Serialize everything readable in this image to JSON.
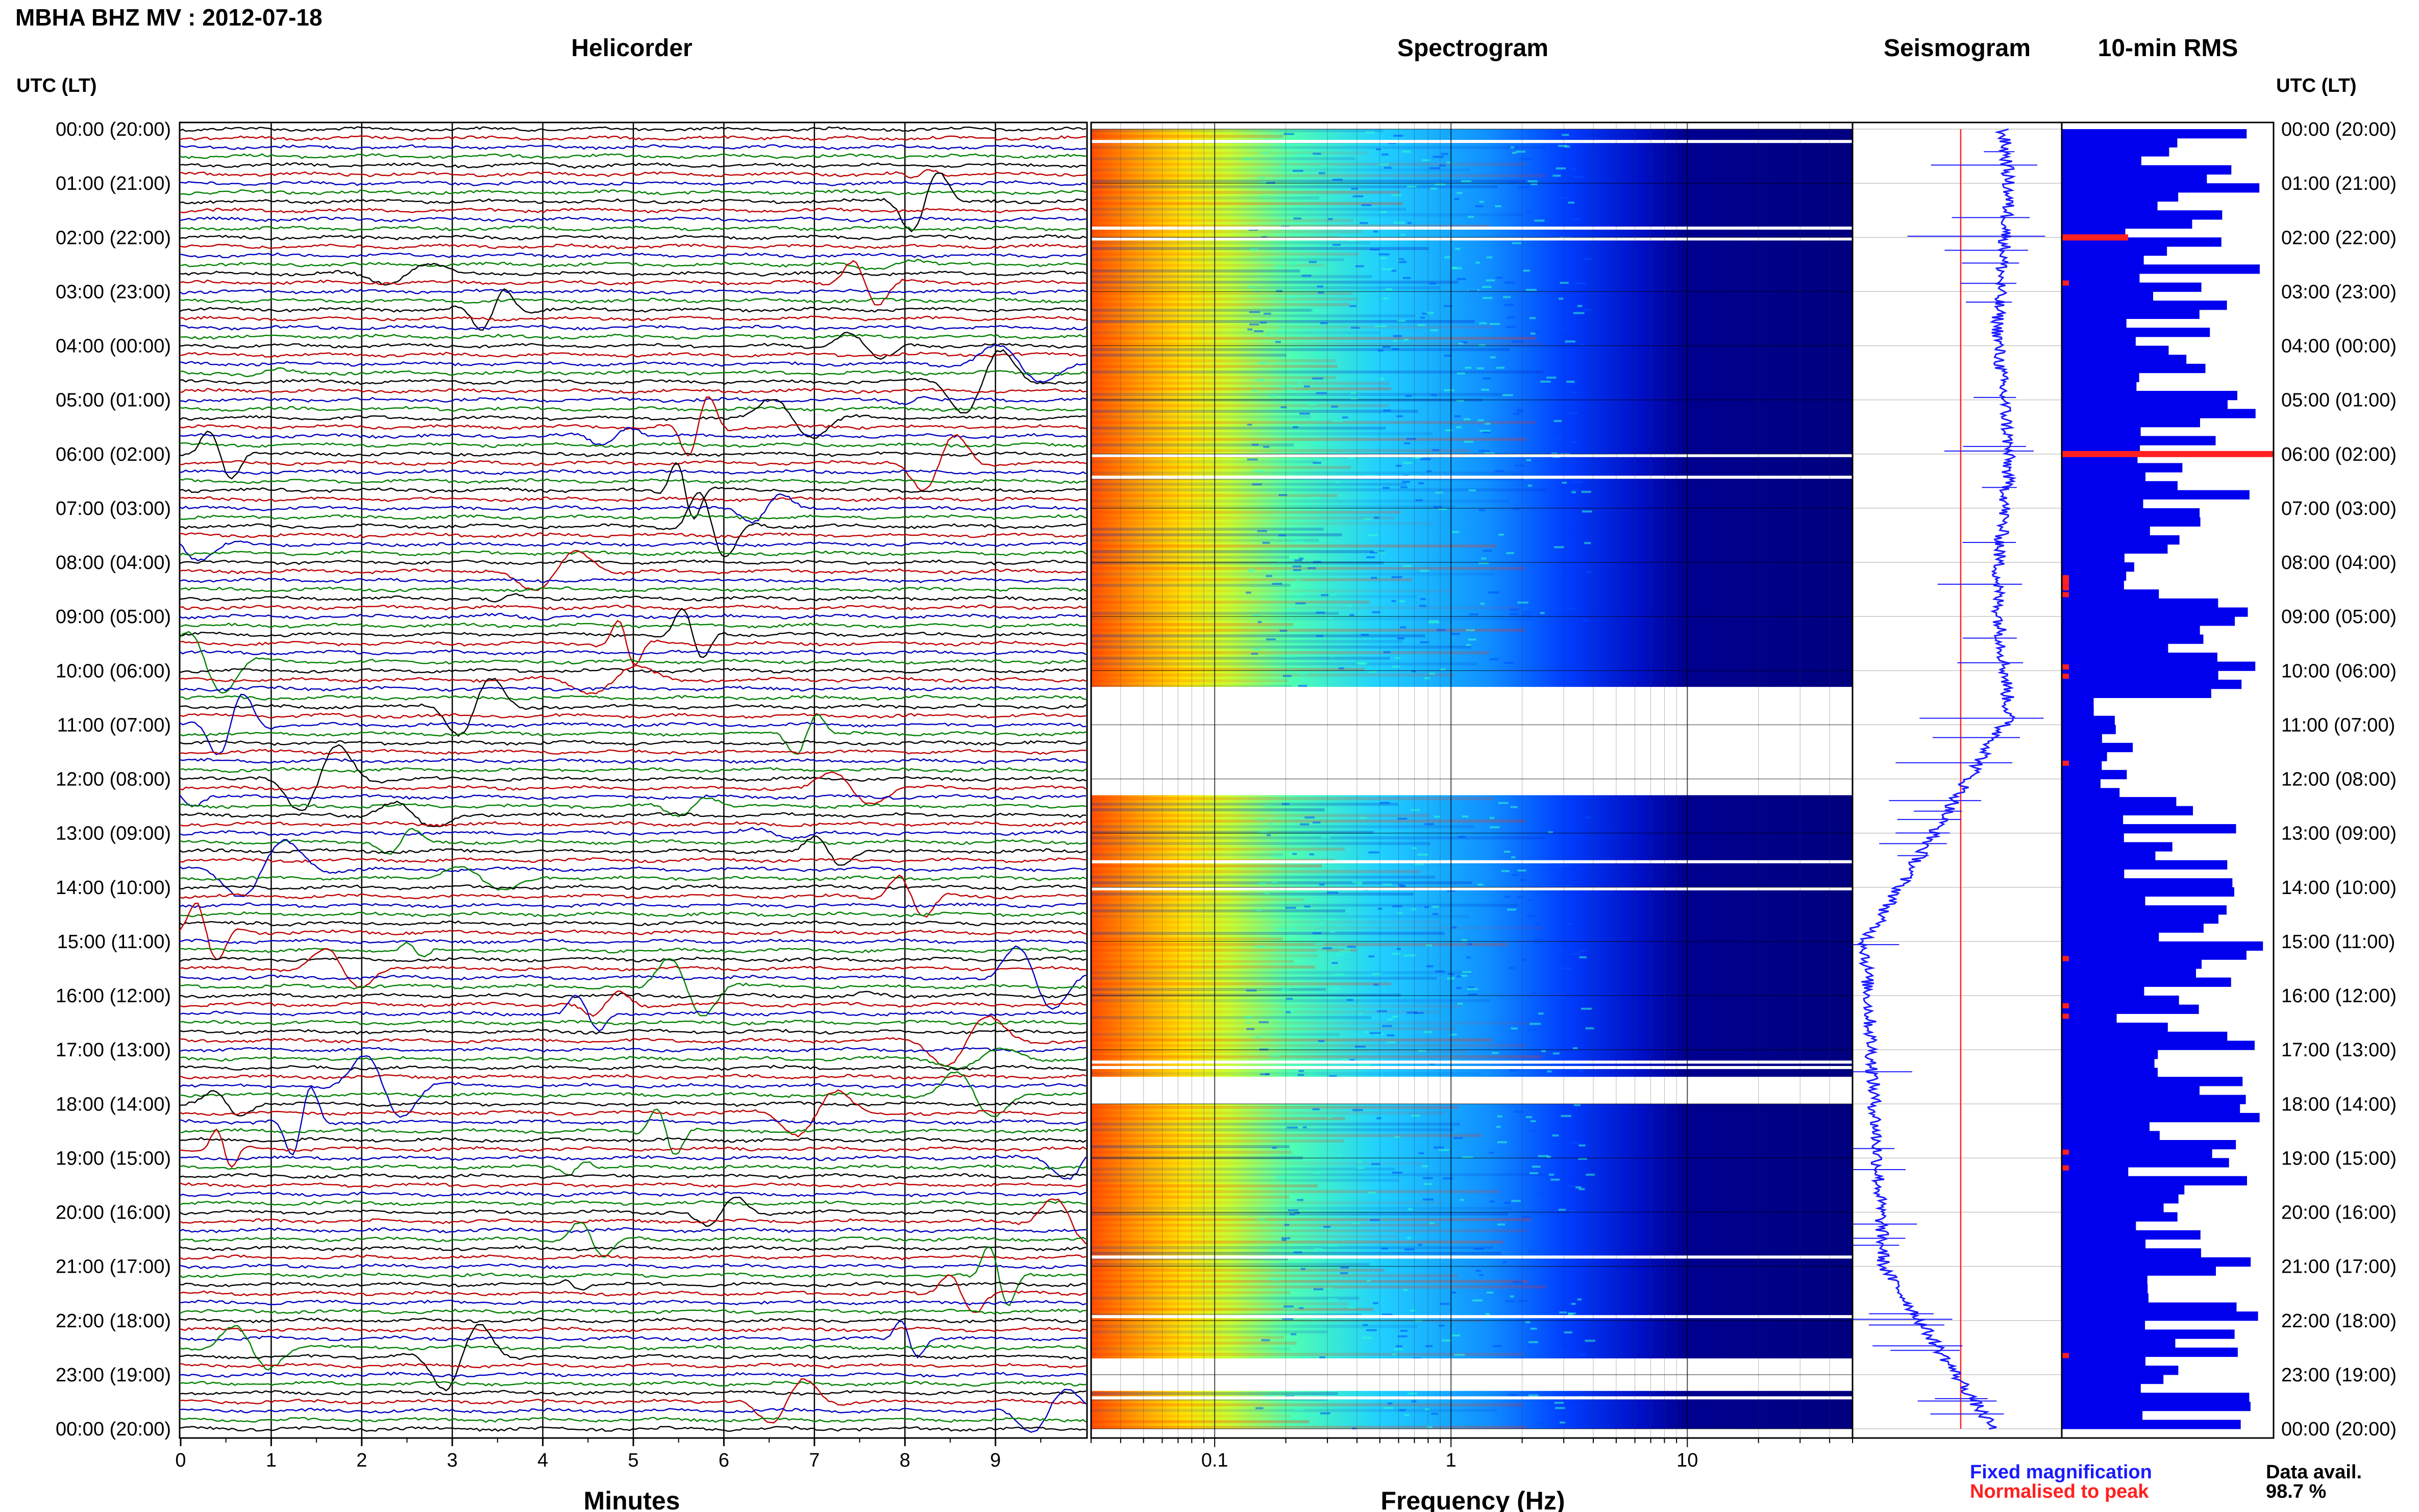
{
  "header": {
    "station_title": "MBHA BHZ MV : 2012-07-18"
  },
  "panels": {
    "helicorder": "Helicorder",
    "spectrogram": "Spectrogram",
    "seismogram": "Seismogram",
    "rms": "10-min RMS"
  },
  "time_axis": {
    "label_left": "UTC (LT)",
    "label_right": "UTC (LT)",
    "hour_labels": [
      "00:00 (20:00)",
      "01:00 (21:00)",
      "02:00 (22:00)",
      "03:00 (23:00)",
      "04:00 (00:00)",
      "05:00 (01:00)",
      "06:00 (02:00)",
      "07:00 (03:00)",
      "08:00 (04:00)",
      "09:00 (05:00)",
      "10:00 (06:00)",
      "11:00 (07:00)",
      "12:00 (08:00)",
      "13:00 (09:00)",
      "14:00 (10:00)",
      "15:00 (11:00)",
      "16:00 (12:00)",
      "17:00 (13:00)",
      "18:00 (14:00)",
      "19:00 (15:00)",
      "20:00 (16:00)",
      "21:00 (17:00)",
      "22:00 (18:00)",
      "23:00 (19:00)",
      "00:00 (20:00)"
    ]
  },
  "footer": {
    "fixed_magnification": "Fixed magnification",
    "normalised_to_peak": "Normalised to peak",
    "data_avail_label": "Data avail.",
    "data_avail_value": "98.7 %"
  },
  "colors": {
    "fixed_magnification": "#1a1aff",
    "normalised_to_peak": "#ff2020",
    "helicorder_traces": [
      "#000000",
      "#c00000",
      "#0000c0",
      "#008000"
    ],
    "rms_bar": "#0000ee",
    "spectrogram_ramp": [
      "#00007f",
      "#0000ff",
      "#00bfff",
      "#40ffbf",
      "#ffff00",
      "#ff9f00",
      "#ff3000"
    ]
  },
  "chart_data": [
    {
      "type": "line",
      "panel": "Helicorder",
      "xlabel": "Minutes",
      "x_ticks": [
        0,
        1,
        2,
        3,
        4,
        5,
        6,
        7,
        8,
        9
      ],
      "xlim": [
        0,
        10
      ],
      "y_axis": "time of day, 10-minute trace lines, 00:00 to 24:00 UTC",
      "trace_count": 144
    },
    {
      "type": "heatmap",
      "panel": "Spectrogram",
      "xlabel": "Frequency (Hz)",
      "x_scale": "log",
      "x_ticks": [
        0.1,
        1,
        10
      ],
      "x_tick_labels": [
        "0.1",
        "1",
        "10"
      ],
      "xlim": [
        0.03,
        50
      ],
      "gap_bands_utc_hours": [
        [
          10.3,
          12.3
        ],
        [
          17.5,
          18.0
        ],
        [
          22.7,
          23.3
        ]
      ]
    },
    {
      "type": "line",
      "panel": "Seismogram",
      "series": [
        {
          "name": "Fixed magnification"
        },
        {
          "name": "Normalised to peak"
        }
      ]
    },
    {
      "type": "bar",
      "panel": "10-min RMS",
      "orientation": "horizontal",
      "bar_count": 144
    }
  ]
}
